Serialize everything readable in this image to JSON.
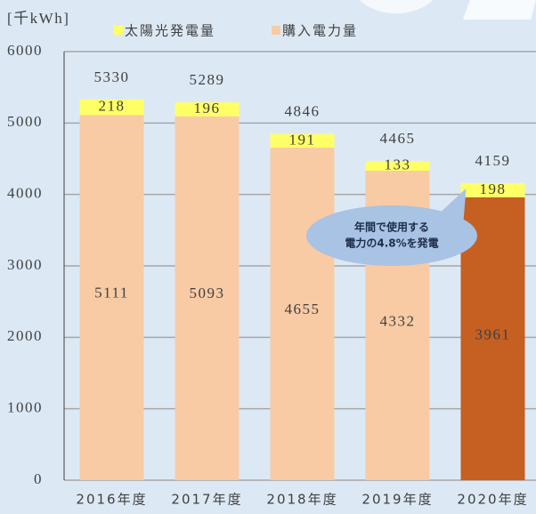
{
  "chart_data": {
    "type": "stacked-bar",
    "unit_label": "[千kWh]",
    "categories": [
      "2016年度",
      "2017年度",
      "2018年度",
      "2019年度",
      "2020年度"
    ],
    "series": [
      {
        "name": "購入電力量",
        "color": "#f8cba5",
        "colors": [
          "#f8cba5",
          "#f8cba5",
          "#f8cba5",
          "#f8cba5",
          "#c55f22"
        ],
        "values": [
          5111,
          5093,
          4655,
          4332,
          3961
        ]
      },
      {
        "name": "太陽光発電量",
        "color": "#ffff66",
        "values": [
          218,
          196,
          191,
          133,
          198
        ]
      }
    ],
    "totals": [
      5330,
      5289,
      4846,
      4465,
      4159
    ],
    "annotation": [
      "年間で使用する",
      "電力の4.8%を発電"
    ],
    "ylim": [
      0,
      6000
    ],
    "yticks": [
      0,
      1000,
      2000,
      3000,
      4000,
      5000,
      6000
    ],
    "grid": true
  }
}
